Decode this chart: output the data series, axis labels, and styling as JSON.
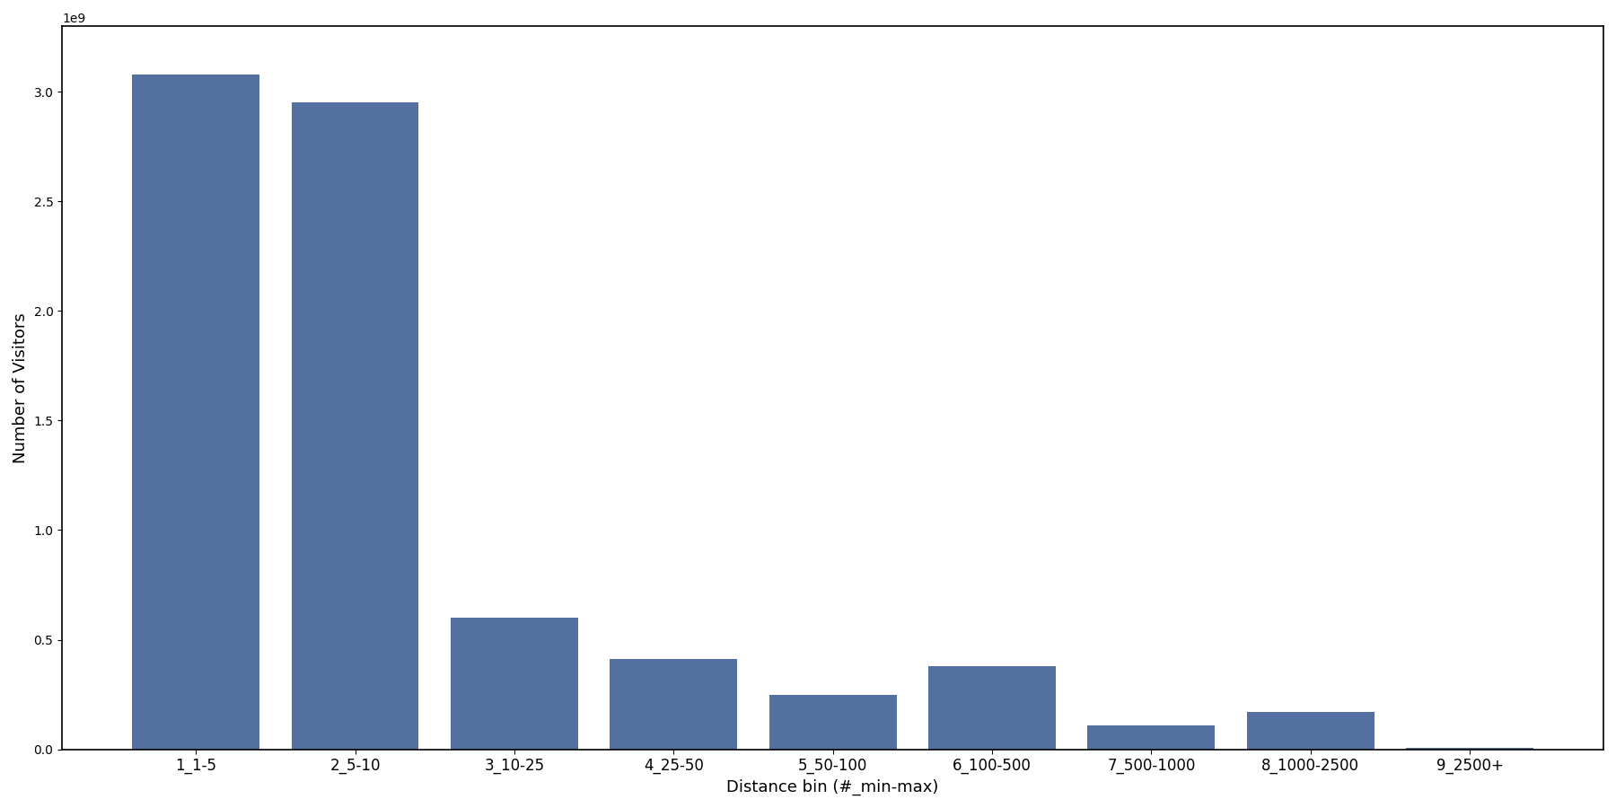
{
  "categories": [
    "1_1-5",
    "2_5-10",
    "3_10-25",
    "4_25-50",
    "5_50-100",
    "6_100-500",
    "7_500-1000",
    "8_1000-2500",
    "9_2500+"
  ],
  "values": [
    3080000000.0,
    2950000000.0,
    600000000.0,
    410000000.0,
    250000000.0,
    380000000.0,
    110000000.0,
    170000000.0,
    5000000.0
  ],
  "bar_color": "#5470a0",
  "xlabel": "Distance bin (#_min-max)",
  "ylabel": "Number of Visitors",
  "ylim": [
    0,
    3300000000.0
  ],
  "figsize": [
    18.0,
    9.0
  ],
  "dpi": 100,
  "bar_width": 0.8,
  "tick_fontsize": 12,
  "label_fontsize": 13
}
